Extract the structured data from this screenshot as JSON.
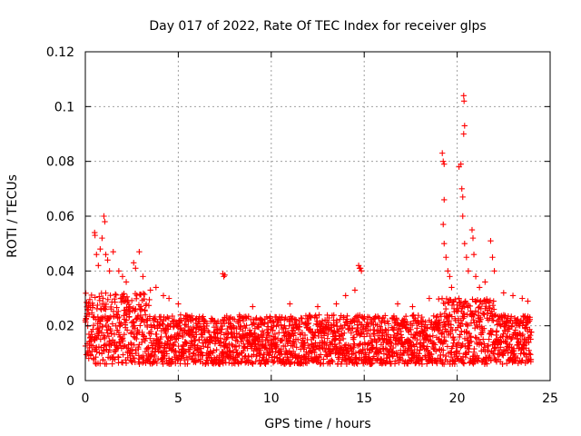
{
  "chart_data": {
    "type": "scatter",
    "title": "Day 017 of 2022, Rate Of TEC Index for receiver glps",
    "xlabel": "GPS time / hours",
    "ylabel": "ROTI / TECUs",
    "xlim": [
      0,
      25
    ],
    "ylim": [
      0,
      0.12
    ],
    "xticks": [
      0,
      5,
      10,
      15,
      20,
      25
    ],
    "xtick_labels": [
      "0",
      "5",
      "10",
      "15",
      "20",
      "25"
    ],
    "yticks": [
      0,
      0.02,
      0.04,
      0.06,
      0.08,
      0.1,
      0.12
    ],
    "ytick_labels": [
      "0",
      "0.02",
      "0.04",
      "0.06",
      "0.08",
      "0.1",
      "0.12"
    ],
    "grid": true,
    "marker": "+",
    "color": "#ff0000",
    "series": [
      {
        "points": [
          [
            0.5,
            0.054
          ],
          [
            0.52,
            0.053
          ],
          [
            0.6,
            0.046
          ],
          [
            0.7,
            0.042
          ],
          [
            0.8,
            0.048
          ],
          [
            0.9,
            0.052
          ],
          [
            1.0,
            0.06
          ],
          [
            1.05,
            0.058
          ],
          [
            1.1,
            0.046
          ],
          [
            1.2,
            0.044
          ],
          [
            1.3,
            0.04
          ],
          [
            1.5,
            0.047
          ],
          [
            1.8,
            0.04
          ],
          [
            2.0,
            0.038
          ],
          [
            2.2,
            0.036
          ],
          [
            2.6,
            0.043
          ],
          [
            2.7,
            0.041
          ],
          [
            2.9,
            0.047
          ],
          [
            3.1,
            0.038
          ],
          [
            3.5,
            0.033
          ],
          [
            3.8,
            0.034
          ],
          [
            4.2,
            0.031
          ],
          [
            4.5,
            0.03
          ],
          [
            5.0,
            0.028
          ],
          [
            7.4,
            0.039
          ],
          [
            7.45,
            0.038
          ],
          [
            7.5,
            0.0385
          ],
          [
            9.0,
            0.027
          ],
          [
            11.0,
            0.028
          ],
          [
            12.5,
            0.027
          ],
          [
            13.5,
            0.028
          ],
          [
            14.0,
            0.031
          ],
          [
            14.5,
            0.033
          ],
          [
            14.7,
            0.042
          ],
          [
            14.75,
            0.041
          ],
          [
            14.8,
            0.041
          ],
          [
            14.85,
            0.04
          ],
          [
            16.8,
            0.028
          ],
          [
            17.6,
            0.027
          ],
          [
            18.5,
            0.03
          ],
          [
            19.2,
            0.083
          ],
          [
            19.25,
            0.08
          ],
          [
            19.3,
            0.079
          ],
          [
            19.3,
            0.066
          ],
          [
            19.25,
            0.057
          ],
          [
            19.3,
            0.05
          ],
          [
            19.4,
            0.045
          ],
          [
            19.5,
            0.04
          ],
          [
            19.6,
            0.038
          ],
          [
            19.7,
            0.034
          ],
          [
            20.1,
            0.078
          ],
          [
            20.2,
            0.079
          ],
          [
            20.25,
            0.07
          ],
          [
            20.3,
            0.067
          ],
          [
            20.3,
            0.06
          ],
          [
            20.35,
            0.104
          ],
          [
            20.37,
            0.102
          ],
          [
            20.4,
            0.093
          ],
          [
            20.35,
            0.09
          ],
          [
            20.4,
            0.05
          ],
          [
            20.5,
            0.045
          ],
          [
            20.6,
            0.04
          ],
          [
            20.8,
            0.055
          ],
          [
            20.85,
            0.052
          ],
          [
            20.9,
            0.046
          ],
          [
            21.0,
            0.038
          ],
          [
            21.2,
            0.034
          ],
          [
            21.5,
            0.036
          ],
          [
            21.8,
            0.051
          ],
          [
            21.9,
            0.045
          ],
          [
            22.0,
            0.04
          ],
          [
            22.5,
            0.032
          ],
          [
            23.0,
            0.031
          ],
          [
            23.5,
            0.03
          ],
          [
            23.8,
            0.029
          ]
        ],
        "dense_band": {
          "x": [
            0.0,
            24.0
          ],
          "y": [
            0.004,
            0.03
          ]
        }
      }
    ]
  }
}
